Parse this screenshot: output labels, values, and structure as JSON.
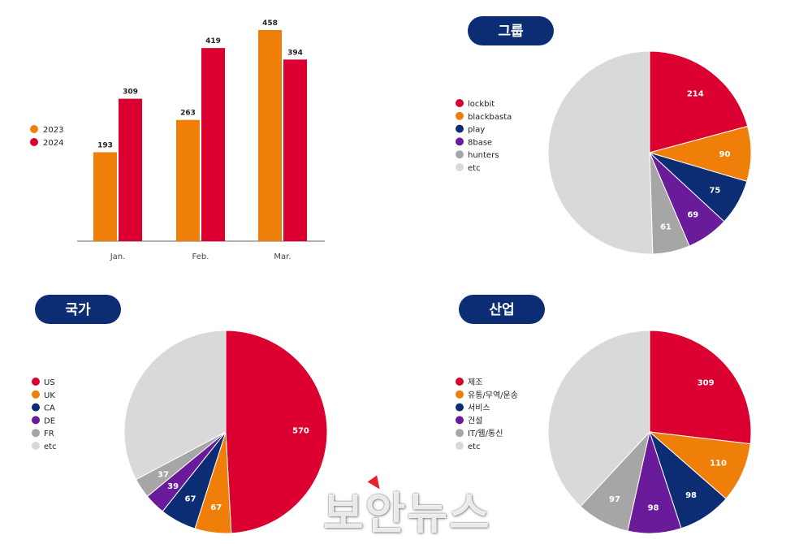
{
  "colors": {
    "red": "#dc0030",
    "orange": "#f07f09",
    "navy": "#0c2d74",
    "purple": "#6a1b9a",
    "gray": "#a6a6a6",
    "lightgray": "#d9d9d9",
    "title_bg": "#0c2d74",
    "axis": "#666666"
  },
  "chart_data": [
    {
      "type": "bar",
      "categories": [
        "Jan.",
        "Feb.",
        "Mar."
      ],
      "series": [
        {
          "name": "2023",
          "values": [
            193,
            263,
            458
          ],
          "color": "#f07f09"
        },
        {
          "name": "2024",
          "values": [
            309,
            419,
            394
          ],
          "color": "#dc0030"
        }
      ],
      "ylim": [
        0,
        458
      ],
      "legend": "left",
      "grid": false
    },
    {
      "type": "pie",
      "title": "그룹",
      "labels": [
        "lockbit",
        "blackbasta",
        "play",
        "8base",
        "hunters",
        "etc"
      ],
      "values": [
        214,
        90,
        75,
        69,
        61,
        519
      ],
      "data_labels": [
        "214",
        "90",
        "75",
        "69",
        "61",
        ""
      ],
      "colors": [
        "#dc0030",
        "#f07f09",
        "#0c2d74",
        "#6a1b9a",
        "#a6a6a6",
        "#d9d9d9"
      ],
      "legend": "left"
    },
    {
      "type": "pie",
      "title": "국가",
      "labels": [
        "US",
        "UK",
        "CA",
        "DE",
        "FR",
        "etc"
      ],
      "values": [
        570,
        67,
        67,
        39,
        37,
        380
      ],
      "data_labels": [
        "570",
        "67",
        "67",
        "39",
        "37",
        ""
      ],
      "colors": [
        "#dc0030",
        "#f07f09",
        "#0c2d74",
        "#6a1b9a",
        "#a6a6a6",
        "#d9d9d9"
      ],
      "legend": "left"
    },
    {
      "type": "pie",
      "title": "산업",
      "labels": [
        "제조",
        "유통/무역/운송",
        "서비스",
        "건설",
        "IT/웹/통신",
        "etc"
      ],
      "values": [
        309,
        110,
        98,
        98,
        97,
        438
      ],
      "data_labels": [
        "309",
        "110",
        "98",
        "98",
        "97",
        ""
      ],
      "colors": [
        "#dc0030",
        "#f07f09",
        "#0c2d74",
        "#6a1b9a",
        "#a6a6a6",
        "#d9d9d9"
      ],
      "legend": "left"
    }
  ],
  "watermark": "보안뉴스"
}
